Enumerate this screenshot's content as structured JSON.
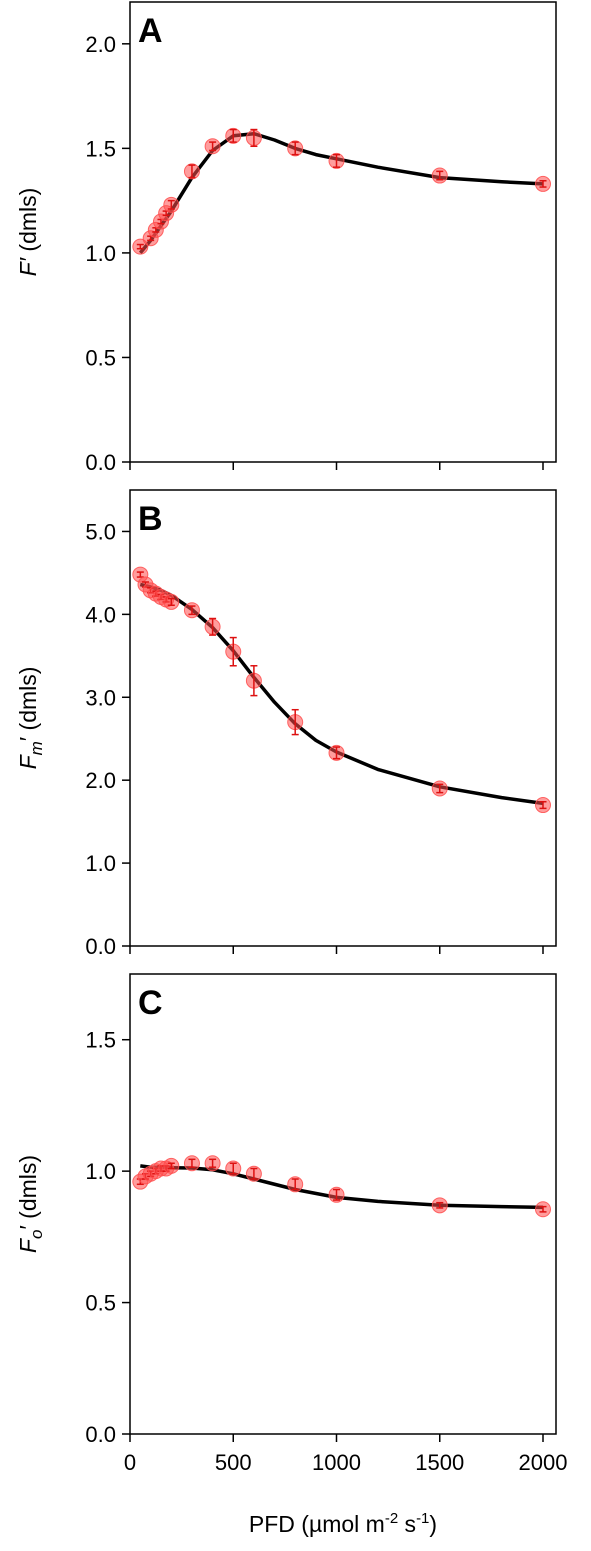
{
  "chart_data": [
    {
      "type": "scatter",
      "panel": "A",
      "ylabel": "F′ (dmls)",
      "ylabel_main": "F′",
      "ylabel_sub": "",
      "ylabel_unit": " (dmls)",
      "xlim": [
        0,
        2100
      ],
      "ylim": [
        0,
        2.2
      ],
      "yticks": [
        0.0,
        0.5,
        1.0,
        1.5,
        2.0
      ],
      "ytick_labels": [
        "0.0",
        "0.5",
        "1.0",
        "1.5",
        "2.0"
      ],
      "xticks": [
        0,
        500,
        1000,
        1500,
        2000
      ],
      "series": [
        {
          "kind": "points",
          "x": [
            50,
            100,
            125,
            150,
            175,
            200,
            300,
            400,
            500,
            600,
            800,
            1000,
            1500,
            2000
          ],
          "y": [
            1.03,
            1.07,
            1.11,
            1.15,
            1.19,
            1.23,
            1.39,
            1.51,
            1.56,
            1.55,
            1.5,
            1.44,
            1.37,
            1.33
          ],
          "err": [
            0.01,
            0.01,
            0.01,
            0.01,
            0.01,
            0.02,
            0.03,
            0.02,
            0.03,
            0.04,
            0.03,
            0.03,
            0.02,
            0.015
          ],
          "color": "#ff4d4d"
        },
        {
          "kind": "fit",
          "x": [
            50,
            100,
            150,
            200,
            300,
            400,
            500,
            600,
            700,
            800,
            900,
            1000,
            1200,
            1500,
            1800,
            2000
          ],
          "y": [
            1.0,
            1.06,
            1.13,
            1.2,
            1.36,
            1.49,
            1.56,
            1.57,
            1.54,
            1.5,
            1.47,
            1.45,
            1.41,
            1.36,
            1.34,
            1.33
          ],
          "color": "#000000"
        }
      ]
    },
    {
      "type": "scatter",
      "panel": "B",
      "ylabel": "Fm′ (dmls)",
      "ylabel_main": "F",
      "ylabel_sub": "m",
      "ylabel_unit": "′ (dmls)",
      "xlim": [
        0,
        2100
      ],
      "ylim": [
        0,
        5.5
      ],
      "yticks": [
        0.0,
        1.0,
        2.0,
        3.0,
        4.0,
        5.0
      ],
      "ytick_labels": [
        "0.0",
        "1.0",
        "2.0",
        "3.0",
        "4.0",
        "5.0"
      ],
      "xticks": [
        0,
        500,
        1000,
        1500,
        2000
      ],
      "series": [
        {
          "kind": "points",
          "x": [
            50,
            75,
            100,
            125,
            150,
            175,
            200,
            300,
            400,
            500,
            600,
            800,
            1000,
            1500,
            2000
          ],
          "y": [
            4.48,
            4.36,
            4.29,
            4.25,
            4.21,
            4.18,
            4.15,
            4.05,
            3.85,
            3.55,
            3.2,
            2.7,
            2.33,
            1.9,
            1.7
          ],
          "err": [
            0.03,
            0.03,
            0.03,
            0.03,
            0.03,
            0.03,
            0.04,
            0.05,
            0.1,
            0.17,
            0.18,
            0.15,
            0.07,
            0.05,
            0.04
          ],
          "color": "#ff4d4d"
        },
        {
          "kind": "fit",
          "x": [
            50,
            100,
            150,
            200,
            300,
            400,
            500,
            600,
            700,
            800,
            900,
            1000,
            1200,
            1500,
            1800,
            2000
          ],
          "y": [
            4.36,
            4.33,
            4.29,
            4.23,
            4.06,
            3.84,
            3.56,
            3.24,
            2.94,
            2.68,
            2.48,
            2.34,
            2.13,
            1.92,
            1.79,
            1.72
          ],
          "color": "#000000"
        }
      ]
    },
    {
      "type": "scatter",
      "panel": "C",
      "ylabel": "Fo′ (dmls)",
      "ylabel_main": "F",
      "ylabel_sub": "o",
      "ylabel_unit": "′ (dmls)",
      "xlabel": "PFD (µmol m⁻² s⁻¹)",
      "xlabel_main": "PFD (µmol m",
      "xlabel_sup1": "-2",
      "xlabel_mid": " s",
      "xlabel_sup2": "-1",
      "xlabel_end": ")",
      "xlim": [
        0,
        2100
      ],
      "ylim": [
        0,
        1.75
      ],
      "yticks": [
        0.0,
        0.5,
        1.0,
        1.5
      ],
      "ytick_labels": [
        "0.0",
        "0.5",
        "1.0",
        "1.5"
      ],
      "xticks": [
        0,
        500,
        1000,
        1500,
        2000
      ],
      "xtick_labels": [
        "0",
        "500",
        "1000",
        "1500",
        "2000"
      ],
      "series": [
        {
          "kind": "points",
          "x": [
            50,
            75,
            100,
            125,
            150,
            175,
            200,
            300,
            400,
            500,
            600,
            800,
            1000,
            1500,
            2000
          ],
          "y": [
            0.96,
            0.98,
            0.99,
            1.0,
            1.01,
            1.01,
            1.02,
            1.03,
            1.03,
            1.01,
            0.99,
            0.95,
            0.91,
            0.87,
            0.855
          ],
          "err": [
            0.01,
            0.01,
            0.01,
            0.01,
            0.01,
            0.01,
            0.01,
            0.015,
            0.015,
            0.02,
            0.02,
            0.02,
            0.02,
            0.01,
            0.01
          ],
          "color": "#ff4d4d"
        },
        {
          "kind": "fit",
          "x": [
            50,
            100,
            200,
            300,
            400,
            500,
            600,
            800,
            1000,
            1200,
            1500,
            1800,
            2000
          ],
          "y": [
            1.02,
            1.015,
            1.013,
            1.012,
            1.005,
            0.99,
            0.97,
            0.93,
            0.9,
            0.885,
            0.87,
            0.865,
            0.862
          ],
          "color": "#000000"
        }
      ]
    }
  ]
}
